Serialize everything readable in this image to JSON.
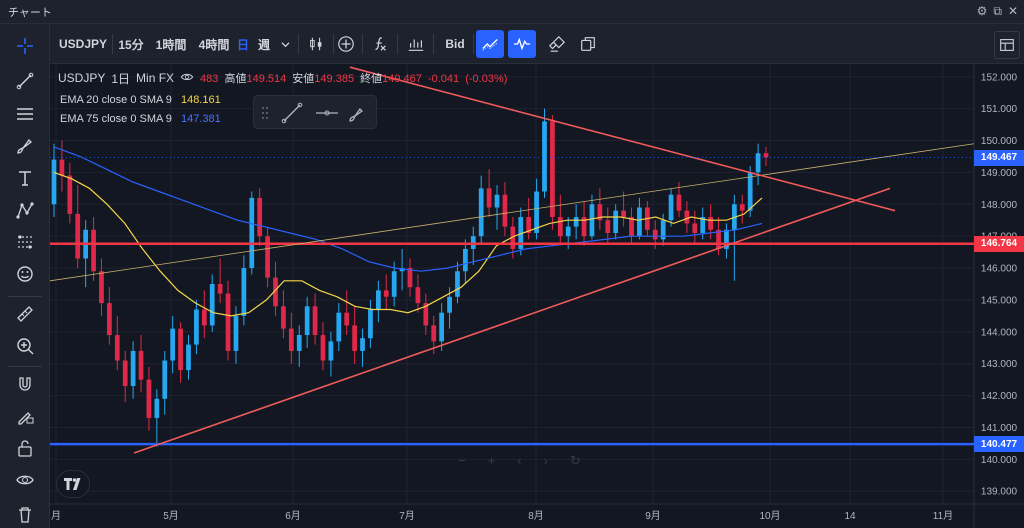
{
  "window": {
    "title": "チャート",
    "buttons": [
      "⚙",
      "⧉",
      "✕"
    ]
  },
  "toolbar": {
    "symbol": "USDJPY",
    "timeframes": [
      "15分",
      "1時間",
      "4時間",
      "日",
      "週"
    ],
    "active_timeframe": "日",
    "bid_label": "Bid"
  },
  "legend": {
    "symbol": "USDJPY",
    "interval": "1日",
    "broker": "Min FX",
    "ohlc": {
      "open_tail": "483",
      "high_label": "高値",
      "high": "149.514",
      "low_label": "安値",
      "low": "149.385",
      "close_label": "終値",
      "close": "149.467",
      "change": "-0.041",
      "change_pct": "(-0.03%)"
    },
    "ema1": {
      "label": "EMA 20 close 0 SMA 9",
      "value": "148.161",
      "color": "#f5d547"
    },
    "ema2": {
      "label": "EMA 75 close 0 SMA 9",
      "value": "147.381",
      "color": "#2962ff"
    }
  },
  "chart_data": {
    "type": "candlestick",
    "y_ticks": [
      152.0,
      151.0,
      150.0,
      149.0,
      148.0,
      147.0,
      146.0,
      145.0,
      144.0,
      143.0,
      142.0,
      141.0,
      140.0,
      139.0
    ],
    "y_tick_labels": [
      "152.000",
      "151.000",
      "150.000",
      "149.000",
      "148.000",
      "147.000",
      "146.000",
      "145.000",
      "144.000",
      "143.000",
      "142.000",
      "141.000",
      "140.000",
      "139.000"
    ],
    "ylim": [
      138.6,
      152.4
    ],
    "x_tick_labels": [
      "月",
      "5月",
      "6月",
      "7月",
      "8月",
      "9月",
      "10月",
      "14",
      "11月"
    ],
    "price_labels": [
      {
        "value": 149.467,
        "text": "149.467",
        "color": "#2962ff"
      },
      {
        "value": 146.764,
        "text": "146.764",
        "color": "#f23645"
      },
      {
        "value": 140.477,
        "text": "140.477",
        "color": "#2962ff"
      }
    ],
    "horizontal_lines": [
      {
        "value": 146.764,
        "color": "#f23645"
      },
      {
        "value": 140.477,
        "color": "#2962ff"
      }
    ],
    "ohlc": [
      [
        148.0,
        149.9,
        147.6,
        149.4
      ],
      [
        149.4,
        150.0,
        148.4,
        148.9
      ],
      [
        148.9,
        149.3,
        147.4,
        147.7
      ],
      [
        147.7,
        148.6,
        146.0,
        146.3
      ],
      [
        146.3,
        147.5,
        145.4,
        147.2
      ],
      [
        147.2,
        147.6,
        145.6,
        145.9
      ],
      [
        145.9,
        146.3,
        144.5,
        144.9
      ],
      [
        144.9,
        145.4,
        143.6,
        143.9
      ],
      [
        143.9,
        144.5,
        142.8,
        143.1
      ],
      [
        143.1,
        143.4,
        141.8,
        142.3
      ],
      [
        142.3,
        143.7,
        141.9,
        143.4
      ],
      [
        143.4,
        143.9,
        142.1,
        142.5
      ],
      [
        142.5,
        142.9,
        140.9,
        141.3
      ],
      [
        141.3,
        142.2,
        140.4,
        141.9
      ],
      [
        141.9,
        143.4,
        141.4,
        143.1
      ],
      [
        143.1,
        144.5,
        142.7,
        144.1
      ],
      [
        144.1,
        144.3,
        142.4,
        142.8
      ],
      [
        142.8,
        143.9,
        142.5,
        143.6
      ],
      [
        143.6,
        145.0,
        143.3,
        144.7
      ],
      [
        144.7,
        145.3,
        143.8,
        144.2
      ],
      [
        144.2,
        145.8,
        144.0,
        145.5
      ],
      [
        145.5,
        146.3,
        144.9,
        145.2
      ],
      [
        145.2,
        145.6,
        143.1,
        143.4
      ],
      [
        143.4,
        144.8,
        143.0,
        144.5
      ],
      [
        144.5,
        146.4,
        144.2,
        146.0
      ],
      [
        146.0,
        148.4,
        145.8,
        148.2
      ],
      [
        148.2,
        148.5,
        146.7,
        147.0
      ],
      [
        147.0,
        147.3,
        145.4,
        145.7
      ],
      [
        145.7,
        146.2,
        144.5,
        144.8
      ],
      [
        144.8,
        145.3,
        143.8,
        144.1
      ],
      [
        144.1,
        144.6,
        143.0,
        143.4
      ],
      [
        143.4,
        144.2,
        142.9,
        143.9
      ],
      [
        143.9,
        145.1,
        143.5,
        144.8
      ],
      [
        144.8,
        145.2,
        143.6,
        143.9
      ],
      [
        143.9,
        144.3,
        142.8,
        143.1
      ],
      [
        143.1,
        144.0,
        142.6,
        143.7
      ],
      [
        143.7,
        144.9,
        143.4,
        144.6
      ],
      [
        144.6,
        145.3,
        143.9,
        144.2
      ],
      [
        144.2,
        144.8,
        143.0,
        143.4
      ],
      [
        143.4,
        144.1,
        142.9,
        143.8
      ],
      [
        143.8,
        145.0,
        143.5,
        144.7
      ],
      [
        144.7,
        145.6,
        144.3,
        145.3
      ],
      [
        145.3,
        145.8,
        144.7,
        145.1
      ],
      [
        145.1,
        146.2,
        144.8,
        145.9
      ],
      [
        145.9,
        146.6,
        145.3,
        146.0
      ],
      [
        146.0,
        146.3,
        145.1,
        145.4
      ],
      [
        145.4,
        145.8,
        144.6,
        144.9
      ],
      [
        144.9,
        145.2,
        143.9,
        144.2
      ],
      [
        144.2,
        144.5,
        143.3,
        143.7
      ],
      [
        143.7,
        144.9,
        143.4,
        144.6
      ],
      [
        144.6,
        145.4,
        144.1,
        145.1
      ],
      [
        145.1,
        146.2,
        144.9,
        145.9
      ],
      [
        145.9,
        146.9,
        145.5,
        146.6
      ],
      [
        146.6,
        147.3,
        146.1,
        147.0
      ],
      [
        147.0,
        148.9,
        146.8,
        148.5
      ],
      [
        148.5,
        149.1,
        147.6,
        147.9
      ],
      [
        147.9,
        148.6,
        147.2,
        148.3
      ],
      [
        148.3,
        148.7,
        147.0,
        147.3
      ],
      [
        147.3,
        147.6,
        146.3,
        146.6
      ],
      [
        146.6,
        147.9,
        146.4,
        147.6
      ],
      [
        147.6,
        148.2,
        146.9,
        147.1
      ],
      [
        147.1,
        148.8,
        146.9,
        148.4
      ],
      [
        148.4,
        151.0,
        148.2,
        150.6
      ],
      [
        150.6,
        150.8,
        147.2,
        147.6
      ],
      [
        147.6,
        148.3,
        146.8,
        147.0
      ],
      [
        147.0,
        147.6,
        146.6,
        147.3
      ],
      [
        147.3,
        148.0,
        146.9,
        147.6
      ],
      [
        147.6,
        148.1,
        146.7,
        147.0
      ],
      [
        147.0,
        148.3,
        146.9,
        148.0
      ],
      [
        148.0,
        148.5,
        147.2,
        147.5
      ],
      [
        147.5,
        147.9,
        146.8,
        147.1
      ],
      [
        147.1,
        148.0,
        146.9,
        147.8
      ],
      [
        147.8,
        148.4,
        147.3,
        147.6
      ],
      [
        147.6,
        147.9,
        146.8,
        147.0
      ],
      [
        147.0,
        148.2,
        146.9,
        147.9
      ],
      [
        147.9,
        148.1,
        147.0,
        147.2
      ],
      [
        147.2,
        147.5,
        146.6,
        146.9
      ],
      [
        146.9,
        147.7,
        146.7,
        147.5
      ],
      [
        147.5,
        148.5,
        147.3,
        148.3
      ],
      [
        148.3,
        148.7,
        147.6,
        147.8
      ],
      [
        147.8,
        148.1,
        147.1,
        147.4
      ],
      [
        147.4,
        147.8,
        146.8,
        147.1
      ],
      [
        147.1,
        147.9,
        146.9,
        147.6
      ],
      [
        147.6,
        148.0,
        146.9,
        147.2
      ],
      [
        147.2,
        147.6,
        146.4,
        146.6
      ],
      [
        146.6,
        147.4,
        146.3,
        147.2
      ],
      [
        147.2,
        148.3,
        145.6,
        148.0
      ],
      [
        148.0,
        148.3,
        147.4,
        147.8
      ],
      [
        147.8,
        149.2,
        147.6,
        149.0
      ],
      [
        149.0,
        149.9,
        148.6,
        149.6
      ],
      [
        149.6,
        149.8,
        149.2,
        149.47
      ]
    ],
    "ema20": [
      149.0,
      148.8,
      148.5,
      148.0,
      147.4,
      146.6,
      145.9,
      145.3,
      144.9,
      144.6,
      144.5,
      144.6,
      145.0,
      145.6,
      145.6,
      145.3,
      145.1,
      144.8,
      144.7,
      144.7,
      144.6,
      144.8,
      145.1,
      145.4,
      145.9,
      146.7,
      147.0,
      147.2,
      147.4,
      147.5,
      147.5,
      147.6,
      147.6,
      147.5,
      147.6,
      147.4,
      147.6,
      147.5,
      147.5,
      147.7,
      148.2
    ],
    "ema75": [
      149.8,
      149.5,
      149.1,
      148.7,
      148.4,
      148.1,
      147.8,
      147.5,
      147.3,
      147.1,
      146.9,
      146.6,
      146.2,
      146.0,
      145.9,
      146.0,
      146.2,
      146.4,
      146.6,
      146.7,
      146.8,
      146.9,
      147.0,
      147.0,
      147.0,
      147.1,
      147.2,
      147.4
    ]
  }
}
